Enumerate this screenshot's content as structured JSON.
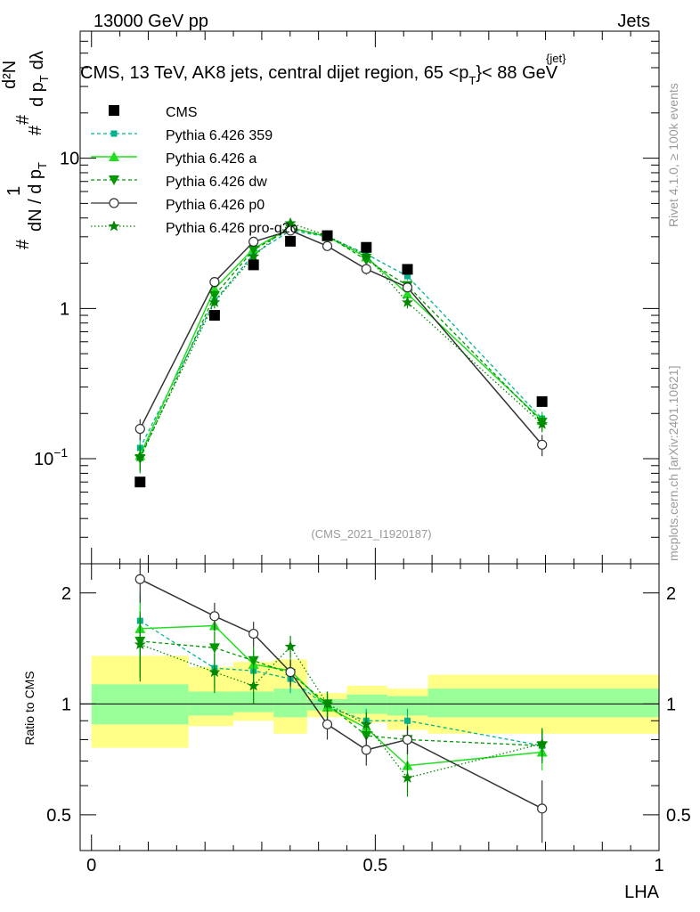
{
  "header": {
    "energy": "13000 GeV pp",
    "process": "Jets",
    "subtitle": "CMS, 13 TeV, AK8 jets, central dijet region, 65 <",
    "subtitle_pt": "p",
    "subtitle_pt_sub": "T",
    "subtitle_pt_sup": "{jet}",
    "subtitle_end": "}< 88 GeV",
    "rivet_label": "Rivet 4.1.0, ≥ 100k events",
    "mcplots_label": "mcplots.cern.ch [arXiv:2401.10621]",
    "analysis_id": "(CMS_2021_I1920187)"
  },
  "colors": {
    "cms": "#000000",
    "p359": "#00b38f",
    "pa": "#22dd22",
    "pdw": "#009900",
    "pp0": "#333333",
    "pproq2o": "#008800",
    "band_outer": "#ffff88",
    "band_inner": "#99ff99"
  },
  "chart_data": [
    {
      "type": "line",
      "title": "CMS, 13 TeV, AK8 jets, central dijet region, 65 < pT{jet} < 88 GeV",
      "ylabel": "1/dN/dpT dN2/dpT dlambda",
      "ylabel_parts": {
        "one": "1",
        "num_hash": "#",
        "num": "d²N",
        "den_hash": "#",
        "den": "dN / d p",
        "den_sub": "T",
        "mid_hash": "#",
        "mid": "d p",
        "mid_sub": "T",
        "mid_end": "dλ"
      },
      "yscale": "log",
      "ylim": [
        0.02,
        70
      ],
      "xlim": [
        -0.02,
        1.0
      ],
      "yticks": [
        {
          "v": 0.1,
          "base": "10",
          "exp": "−1"
        },
        {
          "v": 1,
          "base": "1",
          "exp": ""
        },
        {
          "v": 10,
          "base": "10",
          "exp": ""
        }
      ],
      "legend_position": "top-left",
      "legend": [
        "CMS",
        "Pythia 6.426 359",
        "Pythia 6.426 a",
        "Pythia 6.426 dw",
        "Pythia 6.426 p0",
        "Pythia 6.426 pro-q2o"
      ],
      "series": [
        {
          "name": "CMS",
          "key": "cms",
          "marker": "square",
          "line": "none",
          "x": [
            0.0856,
            0.2168,
            0.2855,
            0.3505,
            0.4155,
            0.4842,
            0.5567,
            0.7939
          ],
          "y": [
            0.07,
            0.9,
            1.95,
            2.8,
            3.05,
            2.55,
            1.82,
            0.24
          ],
          "err": [
            0.004,
            0.03,
            0.05,
            0.07,
            0.08,
            0.07,
            0.06,
            0.01
          ]
        },
        {
          "name": "Pythia 6.426 359",
          "key": "p359",
          "marker": "small-square",
          "line": "dashed",
          "x": [
            0.0856,
            0.2168,
            0.2855,
            0.3505,
            0.4155,
            0.4842,
            0.5567,
            0.7939
          ],
          "y": [
            0.118,
            1.12,
            2.3,
            3.3,
            3.0,
            2.3,
            1.64,
            0.185
          ],
          "err": [
            0.02,
            0.1,
            0.15,
            0.2,
            0.15,
            0.15,
            0.1,
            0.02
          ]
        },
        {
          "name": "Pythia 6.426 a",
          "key": "pa",
          "marker": "triangle-up",
          "line": "solid",
          "x": [
            0.0856,
            0.2168,
            0.2855,
            0.3505,
            0.4155,
            0.4842,
            0.5567,
            0.7939
          ],
          "y": [
            0.105,
            1.35,
            2.5,
            3.45,
            3.0,
            2.2,
            1.25,
            0.18
          ],
          "err": [
            0.02,
            0.1,
            0.15,
            0.2,
            0.15,
            0.15,
            0.1,
            0.02
          ]
        },
        {
          "name": "Pythia 6.426 dw",
          "key": "pdw",
          "marker": "triangle-down",
          "line": "dashed",
          "x": [
            0.0856,
            0.2168,
            0.2855,
            0.3505,
            0.4155,
            0.4842,
            0.5567,
            0.7939
          ],
          "y": [
            0.1,
            1.22,
            2.45,
            3.4,
            3.05,
            2.1,
            1.42,
            0.175
          ],
          "err": [
            0.02,
            0.1,
            0.15,
            0.2,
            0.15,
            0.15,
            0.1,
            0.02
          ]
        },
        {
          "name": "Pythia 6.426 p0",
          "key": "pp0",
          "marker": "open-circle",
          "line": "solid",
          "x": [
            0.0856,
            0.2168,
            0.2855,
            0.3505,
            0.4155,
            0.4842,
            0.5567,
            0.7939
          ],
          "y": [
            0.158,
            1.5,
            2.78,
            3.3,
            2.6,
            1.83,
            1.38,
            0.124
          ],
          "err": [
            0.025,
            0.12,
            0.15,
            0.2,
            0.15,
            0.15,
            0.1,
            0.02
          ]
        },
        {
          "name": "Pythia 6.426 pro-q2o",
          "key": "pproq2o",
          "marker": "star",
          "line": "dotted",
          "x": [
            0.0856,
            0.2168,
            0.2855,
            0.3505,
            0.4155,
            0.4842,
            0.5567,
            0.7939
          ],
          "y": [
            0.103,
            1.1,
            2.22,
            3.7,
            3.05,
            2.25,
            1.1,
            0.17
          ],
          "err": [
            0.02,
            0.1,
            0.15,
            0.2,
            0.15,
            0.15,
            0.1,
            0.02
          ]
        }
      ]
    },
    {
      "type": "line",
      "title": "",
      "ylabel": "Ratio to CMS",
      "xlabel": "LHA",
      "yscale": "log",
      "ylim": [
        0.4,
        2.4
      ],
      "xlim": [
        -0.02,
        1.0
      ],
      "xticks": [
        {
          "v": 0,
          "label": "0"
        },
        {
          "v": 0.5,
          "label": "0.5"
        },
        {
          "v": 1,
          "label": "1"
        }
      ],
      "yticks": [
        {
          "v": 0.5,
          "label": "0.5"
        },
        {
          "v": 1,
          "label": "1"
        },
        {
          "v": 2,
          "label": "2"
        }
      ],
      "bands": [
        {
          "x0": 0.0,
          "x1": 0.171,
          "outer": [
            0.76,
            1.35
          ],
          "inner": [
            0.88,
            1.13
          ]
        },
        {
          "x0": 0.171,
          "x1": 0.25,
          "outer": [
            0.87,
            1.26
          ],
          "inner": [
            0.93,
            1.08
          ]
        },
        {
          "x0": 0.25,
          "x1": 0.321,
          "outer": [
            0.9,
            1.3
          ],
          "inner": [
            0.95,
            1.08
          ]
        },
        {
          "x0": 0.321,
          "x1": 0.38,
          "outer": [
            0.83,
            1.32
          ],
          "inner": [
            0.92,
            1.1
          ]
        },
        {
          "x0": 0.38,
          "x1": 0.45,
          "outer": [
            0.92,
            1.07
          ],
          "inner": [
            0.96,
            1.03
          ]
        },
        {
          "x0": 0.45,
          "x1": 0.521,
          "outer": [
            0.89,
            1.12
          ],
          "inner": [
            0.94,
            1.06
          ]
        },
        {
          "x0": 0.521,
          "x1": 0.593,
          "outer": [
            0.85,
            1.1
          ],
          "inner": [
            0.93,
            1.05
          ]
        },
        {
          "x0": 0.593,
          "x1": 1.0,
          "outer": [
            0.83,
            1.2
          ],
          "inner": [
            0.92,
            1.1
          ]
        }
      ],
      "series": [
        {
          "name": "Pythia 6.426 359",
          "key": "p359",
          "x": [
            0.0856,
            0.2168,
            0.2855,
            0.3505,
            0.4155,
            0.4842,
            0.5567,
            0.7939
          ],
          "y": [
            1.68,
            1.25,
            1.23,
            1.17,
            0.98,
            0.9,
            0.9,
            0.77
          ],
          "err": [
            0.3,
            0.15,
            0.12,
            0.1,
            0.08,
            0.07,
            0.07,
            0.08
          ]
        },
        {
          "name": "Pythia 6.426 a",
          "key": "pa",
          "x": [
            0.0856,
            0.2168,
            0.2855,
            0.3505,
            0.4155,
            0.4842,
            0.5567,
            0.7939
          ],
          "y": [
            1.6,
            1.63,
            1.28,
            1.23,
            0.98,
            0.86,
            0.68,
            0.74
          ],
          "err": [
            0.3,
            0.15,
            0.12,
            0.1,
            0.08,
            0.07,
            0.07,
            0.08
          ]
        },
        {
          "name": "Pythia 6.426 dw",
          "key": "pdw",
          "x": [
            0.0856,
            0.2168,
            0.2855,
            0.3505,
            0.4155,
            0.4842,
            0.5567,
            0.7939
          ],
          "y": [
            1.48,
            1.42,
            1.31,
            1.21,
            1.0,
            0.82,
            0.8,
            0.77
          ],
          "err": [
            0.3,
            0.15,
            0.12,
            0.1,
            0.08,
            0.07,
            0.07,
            0.08
          ]
        },
        {
          "name": "Pythia 6.426 p0",
          "key": "pp0",
          "x": [
            0.0856,
            0.2168,
            0.2855,
            0.3505,
            0.4155,
            0.4842,
            0.5567,
            0.7939
          ],
          "y": [
            2.18,
            1.73,
            1.55,
            1.22,
            0.88,
            0.75,
            0.8,
            0.52
          ],
          "err": [
            0.3,
            0.15,
            0.12,
            0.1,
            0.08,
            0.07,
            0.07,
            0.1
          ]
        },
        {
          "name": "Pythia 6.426 pro-q2o",
          "key": "pproq2o",
          "x": [
            0.0856,
            0.2168,
            0.2855,
            0.3505,
            0.4155,
            0.4842,
            0.5567,
            0.7939
          ],
          "y": [
            1.45,
            1.22,
            1.12,
            1.43,
            1.0,
            0.88,
            0.63,
            0.78
          ],
          "err": [
            0.3,
            0.15,
            0.12,
            0.1,
            0.08,
            0.07,
            0.07,
            0.08
          ]
        }
      ]
    }
  ]
}
